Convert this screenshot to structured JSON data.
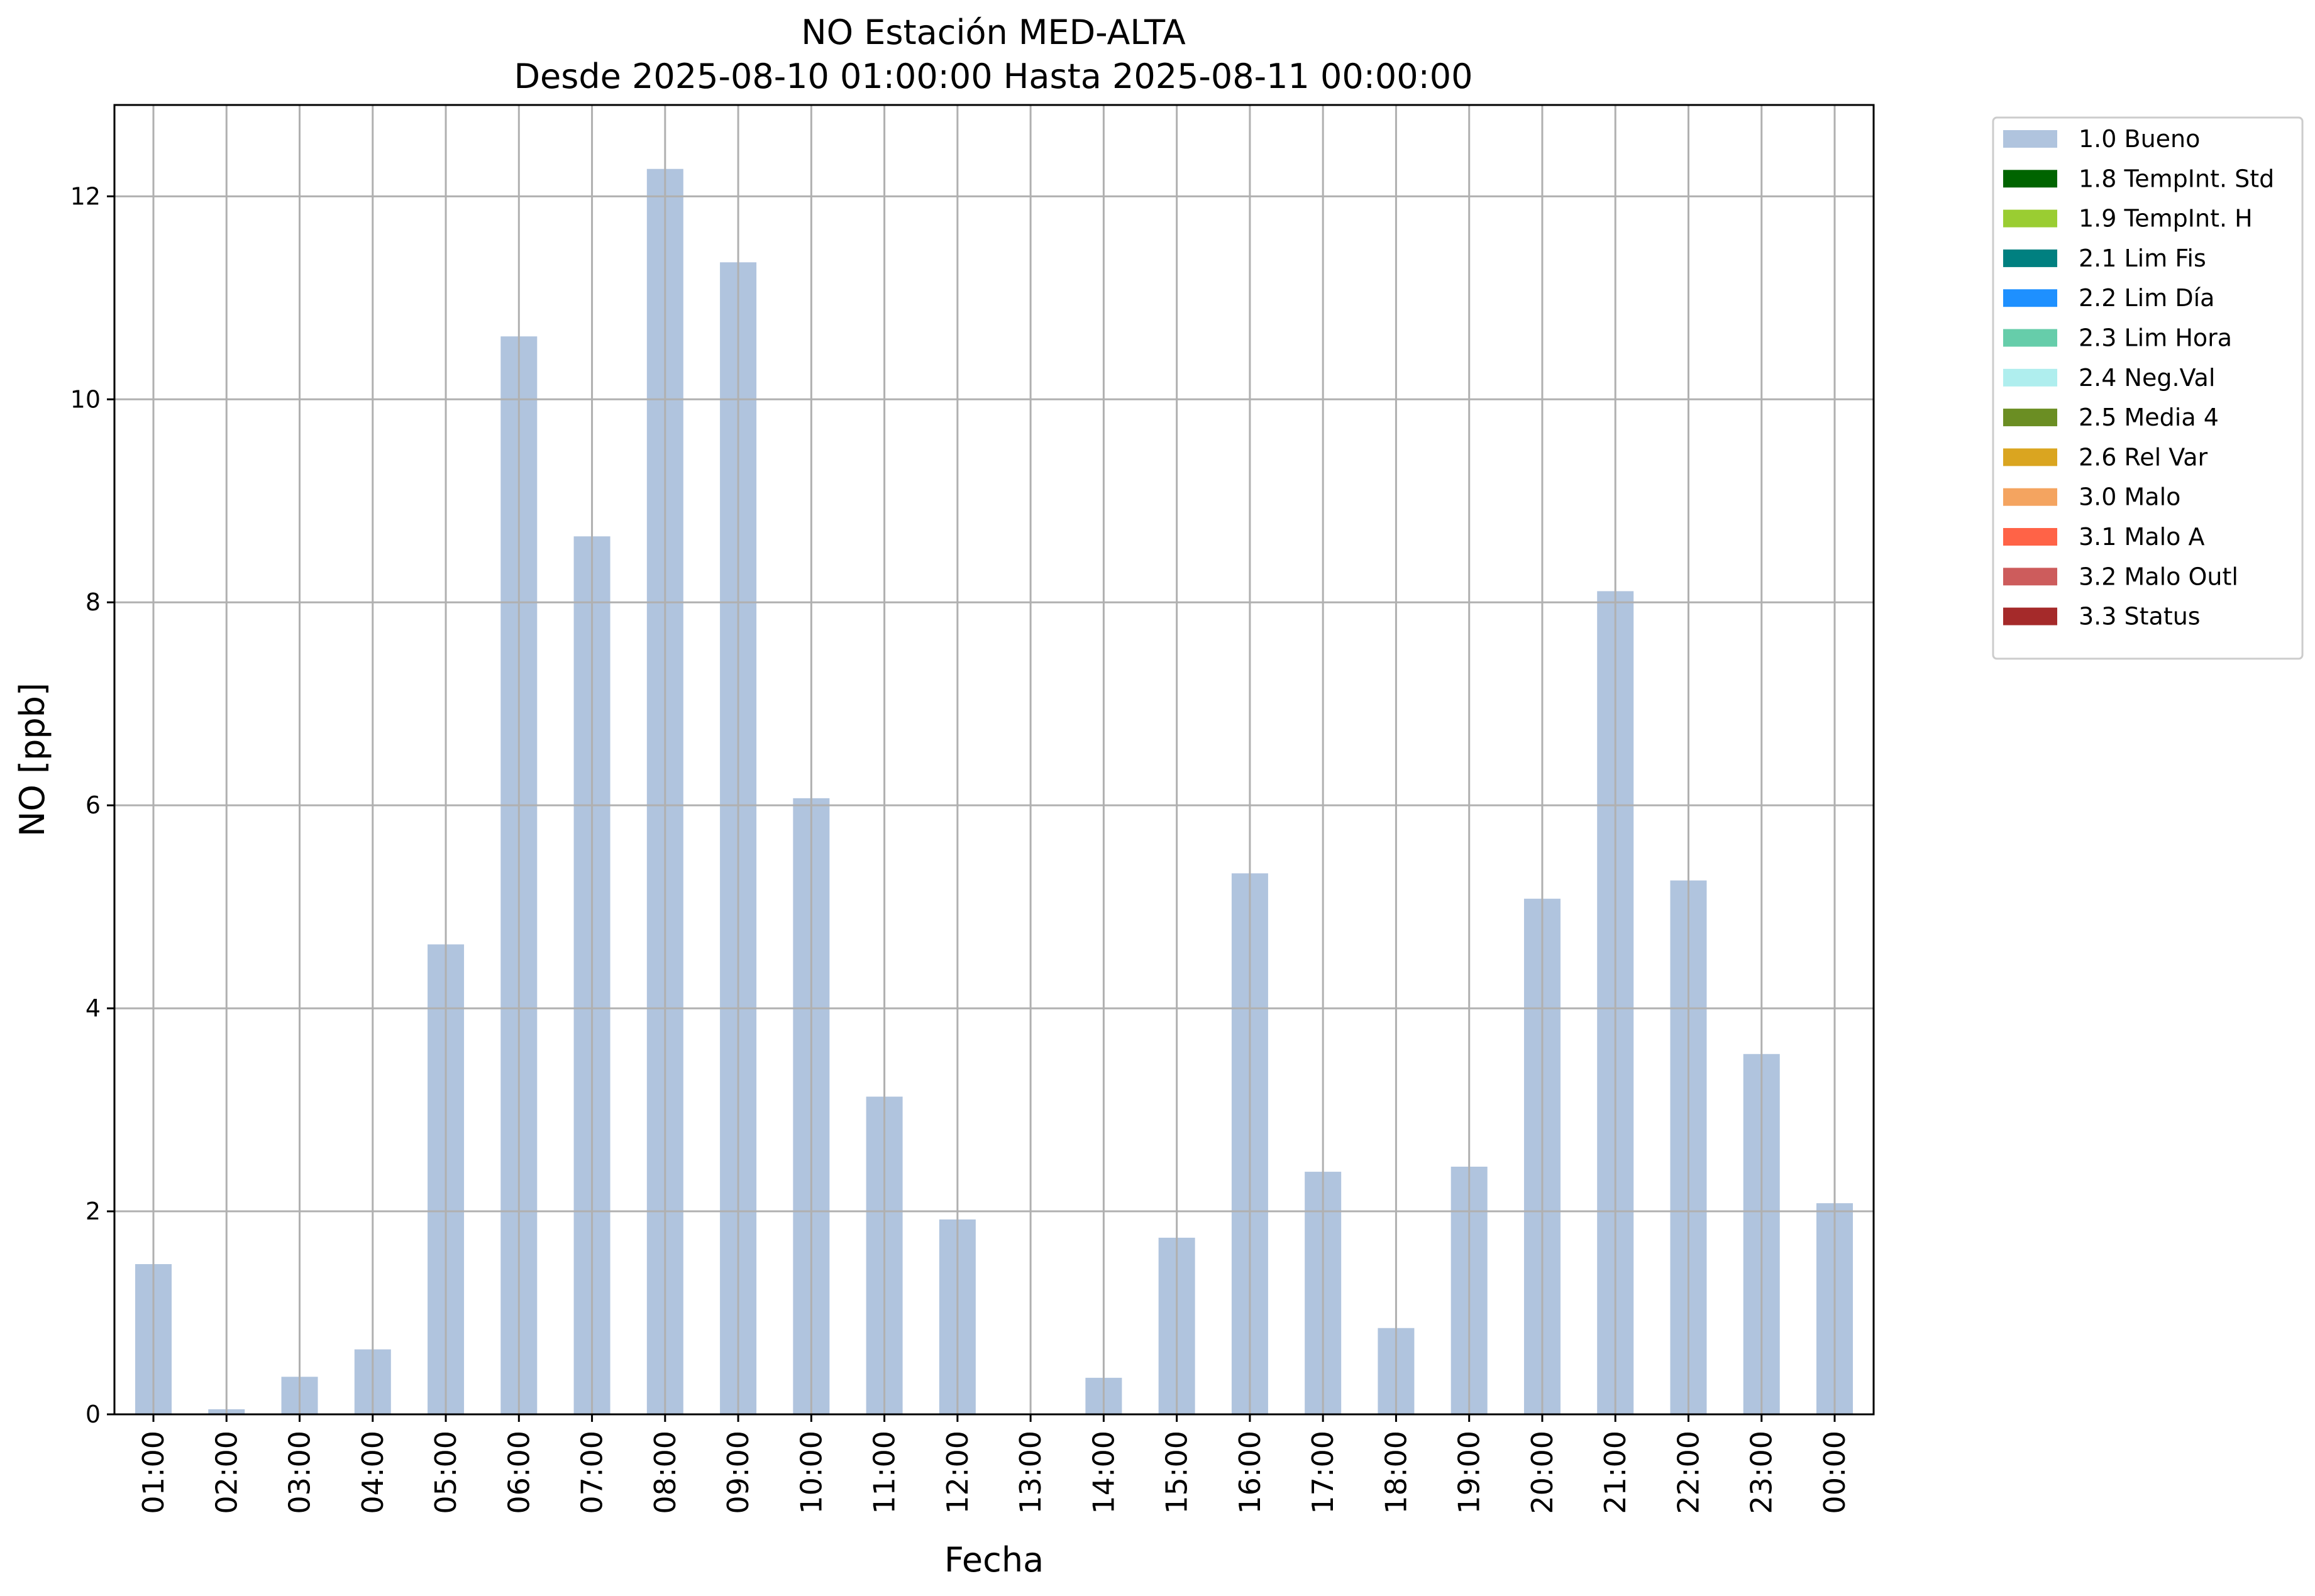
{
  "chart_data": {
    "type": "bar",
    "title": "NO Estación MED-ALTA",
    "subtitle": "Desde 2025-08-10 01:00:00 Hasta 2025-08-11 00:00:00",
    "xlabel": "Fecha",
    "ylabel": "NO [ppb]",
    "ylim": [
      0,
      12.9
    ],
    "yticks": [
      0,
      2,
      4,
      6,
      8,
      10,
      12
    ],
    "grid": true,
    "legend_position": "outside-top-right",
    "categories": [
      "01:00",
      "02:00",
      "03:00",
      "04:00",
      "05:00",
      "06:00",
      "07:00",
      "08:00",
      "09:00",
      "10:00",
      "11:00",
      "12:00",
      "13:00",
      "14:00",
      "15:00",
      "16:00",
      "17:00",
      "18:00",
      "19:00",
      "20:00",
      "21:00",
      "22:00",
      "23:00",
      "00:00"
    ],
    "series": [
      {
        "name": "1.0 Bueno",
        "color": "#b0c4de",
        "values": [
          1.48,
          0.05,
          0.37,
          0.64,
          4.63,
          10.62,
          8.65,
          12.27,
          11.35,
          6.07,
          3.13,
          1.92,
          0.0,
          0.36,
          1.74,
          5.33,
          2.39,
          0.85,
          2.44,
          5.08,
          8.11,
          5.26,
          3.55,
          2.08
        ]
      }
    ],
    "legend": [
      {
        "label": "1.0 Bueno",
        "color": "#b0c4de"
      },
      {
        "label": "1.8 TempInt. Std",
        "color": "#006400"
      },
      {
        "label": "1.9 TempInt. H",
        "color": "#9acd32"
      },
      {
        "label": "2.1 Lim Fis",
        "color": "#008080"
      },
      {
        "label": "2.2 Lim Día",
        "color": "#1e90ff"
      },
      {
        "label": "2.3 Lim Hora",
        "color": "#66cdaa"
      },
      {
        "label": "2.4 Neg.Val",
        "color": "#afeeee"
      },
      {
        "label": "2.5 Media 4",
        "color": "#6b8e23"
      },
      {
        "label": "2.6 Rel Var",
        "color": "#daa520"
      },
      {
        "label": "3.0 Malo",
        "color": "#f4a460"
      },
      {
        "label": "3.1 Malo A",
        "color": "#ff6347"
      },
      {
        "label": "3.2 Malo Outl",
        "color": "#cd5c5c"
      },
      {
        "label": "3.3 Status",
        "color": "#a52a2a"
      }
    ]
  }
}
